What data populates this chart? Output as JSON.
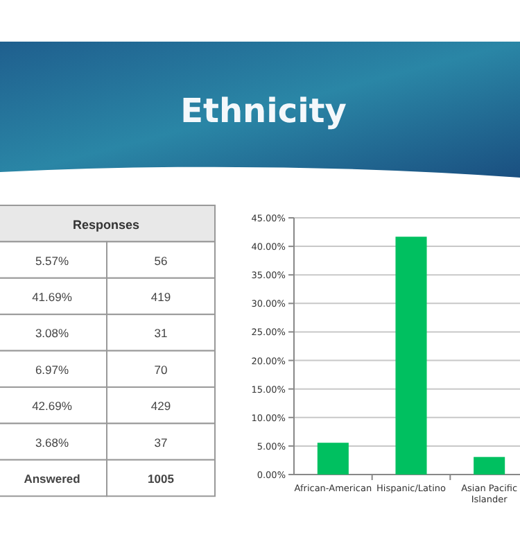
{
  "chart_data": [
    {
      "type": "other",
      "title": "Responses",
      "annotations": [
        "5.57%",
        "56",
        "41.69%",
        "419",
        "3.08%",
        "31",
        "6.97%",
        "70",
        "42.69%",
        "429",
        "3.68%",
        "37",
        "Answered",
        "1005"
      ]
    },
    {
      "type": "bar",
      "title": "Ethnicity",
      "categories": [
        "African-American",
        "Hispanic/Latino",
        "Asian Pacific Islander"
      ],
      "values": [
        5.57,
        41.69,
        3.08
      ],
      "color": "#00c060",
      "ylim": [
        0,
        45
      ],
      "yticks": [
        {
          "value": 0,
          "label": "0.00%"
        },
        {
          "value": 5,
          "label": "5.00%"
        },
        {
          "value": 10,
          "label": "10.00%"
        },
        {
          "value": 15,
          "label": "15.00%"
        },
        {
          "value": 20,
          "label": "20.00%"
        },
        {
          "value": 25,
          "label": "25.00%"
        },
        {
          "value": 30,
          "label": "30.00%"
        },
        {
          "value": 35,
          "label": "35.00%"
        },
        {
          "value": 40,
          "label": "40.00%"
        },
        {
          "value": 45,
          "label": "45.00%"
        }
      ],
      "grid": "y"
    }
  ]
}
